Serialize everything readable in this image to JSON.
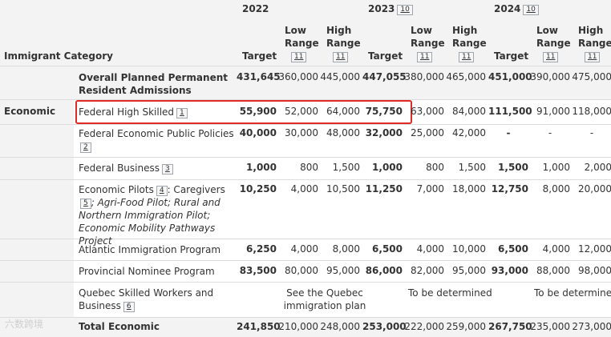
{
  "headers": {
    "category": "Immigrant Category",
    "y2022": "2022",
    "y2023": "2023",
    "y2023_ref": "10",
    "y2024": "2024",
    "y2024_ref": "10",
    "target": "Target",
    "low_range_l1": "Low",
    "low_range_l2": "Range",
    "high_range_l1": "High",
    "high_range_l2": "Range",
    "range_ref": "11"
  },
  "overall": {
    "label_l1": "Overall Planned Permanent",
    "label_l2": "Resident Admissions",
    "values": [
      "431,645",
      "360,000",
      "445,000",
      "447,055",
      "380,000",
      "465,000",
      "451,000",
      "390,000",
      "475,000"
    ]
  },
  "economic": {
    "group_label": "Economic",
    "rows": [
      {
        "label": "Federal High Skilled",
        "ref": "1",
        "values": [
          "55,900",
          "52,000",
          "64,000",
          "75,750",
          "63,000",
          "84,000",
          "111,500",
          "91,000",
          "118,000"
        ]
      },
      {
        "label": "Federal Economic Public Policies",
        "ref": "2",
        "values": [
          "40,000",
          "30,000",
          "48,000",
          "32,000",
          "25,000",
          "42,000",
          "-",
          "-",
          "-"
        ]
      },
      {
        "label": "Federal Business",
        "ref": "3",
        "values": [
          "1,000",
          "800",
          "1,500",
          "1,000",
          "800",
          "1,500",
          "1,500",
          "1,000",
          "2,000"
        ]
      },
      {
        "label": "Economic Pilots",
        "ref": "4",
        "tail1": ": Caregivers",
        "ref2": "5",
        "tail2": "; Agri-Food Pilot; Rural and",
        "tail3": "Northern Immigration Pilot;",
        "tail4": "Economic Mobility Pathways Project",
        "values": [
          "10,250",
          "4,000",
          "10,500",
          "11,250",
          "7,000",
          "18,000",
          "12,750",
          "8,000",
          "20,000"
        ]
      },
      {
        "label": "Atlantic Immigration Program",
        "values": [
          "6,250",
          "4,000",
          "8,000",
          "6,500",
          "4,000",
          "10,000",
          "6,500",
          "4,000",
          "12,000"
        ]
      },
      {
        "label": "Provincial Nominee Program",
        "values": [
          "83,500",
          "80,000",
          "95,000",
          "86,000",
          "82,000",
          "95,000",
          "93,000",
          "88,000",
          "98,000"
        ]
      },
      {
        "label_l1": "Quebec Skilled Workers and",
        "label_l2": "Business",
        "ref": "6",
        "note_2022_l1": "See the Quebec",
        "note_2022_l2": "immigration plan",
        "note_2023": "To be determined",
        "note_2024": "To be determined"
      }
    ],
    "total": {
      "label": "Total Economic",
      "values": [
        "241,850",
        "210,000",
        "248,000",
        "253,000",
        "222,000",
        "259,000",
        "267,750",
        "235,000",
        "273,000"
      ]
    }
  },
  "watermark": "六数跨境",
  "colors": {
    "highlight": "#e02a26",
    "band": "#f3f3f3",
    "divider": "#dcdcdc"
  }
}
